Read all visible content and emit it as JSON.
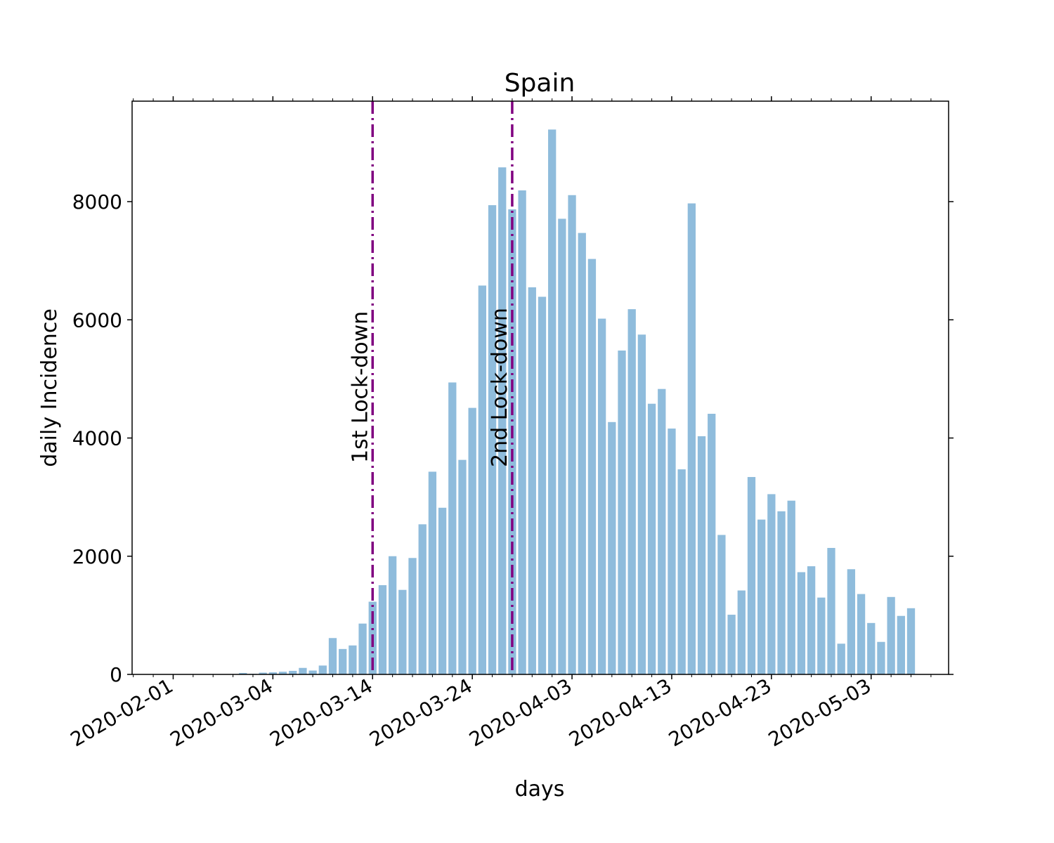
{
  "chart_data": {
    "type": "bar",
    "title": "Spain",
    "xlabel": "days",
    "ylabel": "daily Incidence",
    "ylim": [
      0,
      9700
    ],
    "y_ticks": [
      0,
      2000,
      4000,
      6000,
      8000
    ],
    "y_tick_labels": [
      "0",
      "2000",
      "4000",
      "6000",
      "8000"
    ],
    "x_tick_labels": [
      "2020-02-01",
      "2020-03-04",
      "2020-03-14",
      "2020-03-24",
      "2020-04-03",
      "2020-04-13",
      "2020-04-23",
      "2020-05-03"
    ],
    "grid": false,
    "bar_color": "#8fbcdc",
    "vline_color": "#800080",
    "vlines": [
      {
        "label": "1st Lock-down"
      },
      {
        "label": "2nd Lock-down"
      }
    ],
    "values": [
      0,
      0,
      0,
      0,
      0,
      0,
      0,
      0,
      0,
      0,
      0,
      25,
      10,
      30,
      35,
      45,
      60,
      110,
      65,
      150,
      615,
      430,
      490,
      860,
      1230,
      1510,
      2000,
      1430,
      1970,
      2540,
      3430,
      2820,
      4940,
      3630,
      4510,
      6580,
      7940,
      8580,
      7870,
      8190,
      6550,
      6390,
      9220,
      7710,
      8110,
      7470,
      7030,
      6020,
      4270,
      5480,
      6180,
      5750,
      4580,
      4830,
      4160,
      3470,
      7970,
      4030,
      4410,
      2360,
      1010,
      1420,
      3340,
      2620,
      3050,
      2760,
      2940,
      1730,
      1830,
      1300,
      2140,
      520,
      1780,
      1360,
      870,
      550,
      1310,
      990,
      1120
    ]
  }
}
